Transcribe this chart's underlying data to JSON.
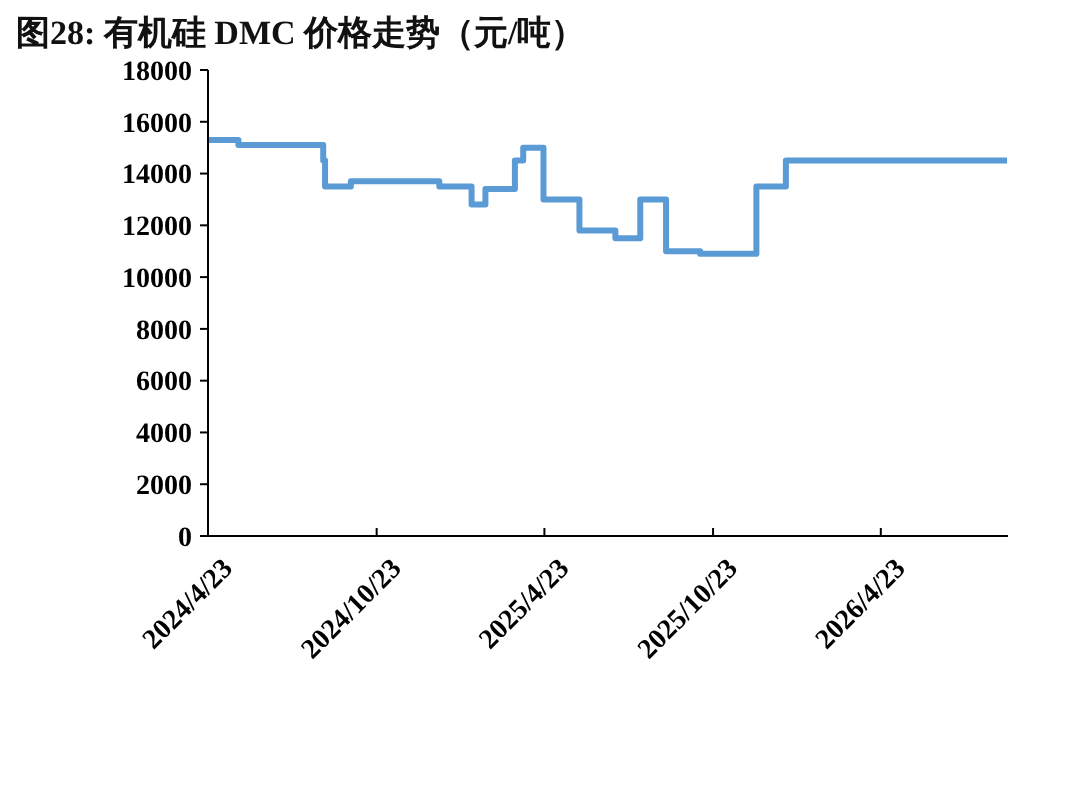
{
  "chart_data": {
    "type": "step",
    "title": "图28:  有机硅 DMC 价格走势（元/吨）",
    "x": [
      "2024-04-23",
      "2024-05-26",
      "2024-08-26",
      "2024-08-28",
      "2024-09-25",
      "2024-12-30",
      "2025-02-03",
      "2025-02-18",
      "2025-03-22",
      "2025-03-31",
      "2025-04-22",
      "2025-05-31",
      "2025-07-09",
      "2025-08-05",
      "2025-09-02",
      "2025-10-09",
      "2025-12-09",
      "2026-01-10",
      "2026-09-07"
    ],
    "series": [
      {
        "color": "#5b9bd5",
        "values": [
          15300,
          15100,
          14500,
          13500,
          13700,
          13500,
          12800,
          13400,
          14500,
          15000,
          13000,
          11800,
          11500,
          13000,
          11000,
          10900,
          13500,
          14500,
          14500
        ]
      }
    ],
    "xlim": [
      "2024-04-23",
      "2026-09-08"
    ],
    "xticks": [
      {
        "value": "2024-04-23",
        "label": "2024/4/23"
      },
      {
        "value": "2024-10-23",
        "label": "2024/10/23"
      },
      {
        "value": "2025-04-23",
        "label": "2025/4/23"
      },
      {
        "value": "2025-10-23",
        "label": "2025/10/23"
      },
      {
        "value": "2026-04-23",
        "label": "2026/4/23"
      }
    ],
    "ylim": [
      0,
      18000
    ],
    "yticks": [
      0,
      2000,
      4000,
      6000,
      8000,
      10000,
      12000,
      14000,
      16000,
      18000
    ],
    "grid": false,
    "line_style": "solid",
    "marker": "none"
  }
}
